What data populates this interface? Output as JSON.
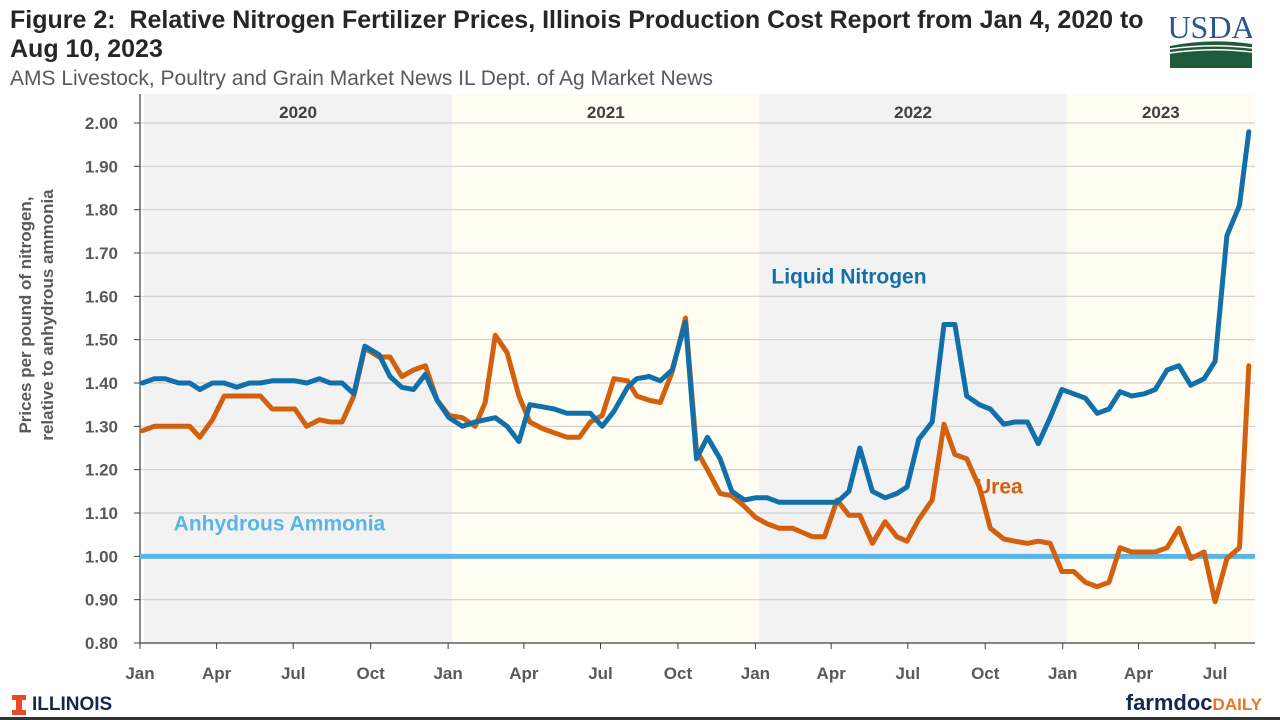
{
  "header": {
    "title": "Figure 2:  Relative Nitrogen Fertilizer Prices, Illinois Production Cost Report from Jan 4, 2020 to Aug 10, 2023",
    "subtitle": "AMS Livestock, Poultry and Grain Market News IL Dept. of Ag Market News",
    "logo_text": "USDA"
  },
  "footer": {
    "left_logo": "ILLINOIS",
    "right_logo_main": "farmdoc",
    "right_logo_accent": "DAILY"
  },
  "colors": {
    "liquid_nitrogen": "#1170aa",
    "urea": "#d2600e",
    "anhydrous_ammonia": "#5ab4e5",
    "band_grey": "#f2f2f2",
    "band_cream": "#fffdf2"
  },
  "chart_data": {
    "type": "line",
    "title": "Figure 2:  Relative Nitrogen Fertilizer Prices, Illinois Production Cost Report from Jan 4, 2020 to Aug 10, 2023",
    "ylabel": "Prices per pound of nitrogen, relative to anhydrous ammonia",
    "xlabel": "",
    "ylim": [
      0.8,
      2.0
    ],
    "yticks": [
      "0.80",
      "0.90",
      "1.00",
      "1.10",
      "1.20",
      "1.30",
      "1.40",
      "1.50",
      "1.60",
      "1.70",
      "1.80",
      "1.90",
      "2.00"
    ],
    "grid": true,
    "year_bands": [
      {
        "label": "2020",
        "start": "2020-01-01",
        "end": "2021-01-01",
        "shade": "grey"
      },
      {
        "label": "2021",
        "start": "2021-01-01",
        "end": "2022-01-01",
        "shade": "cream"
      },
      {
        "label": "2022",
        "start": "2022-01-01",
        "end": "2023-01-01",
        "shade": "grey"
      },
      {
        "label": "2023",
        "start": "2023-01-01",
        "end": "2023-08-20",
        "shade": "cream"
      }
    ],
    "x_ticks": [
      {
        "date": "2020-01-01",
        "label": "Jan"
      },
      {
        "date": "2020-04-01",
        "label": "Apr"
      },
      {
        "date": "2020-07-01",
        "label": "Jul"
      },
      {
        "date": "2020-10-01",
        "label": "Oct"
      },
      {
        "date": "2021-01-01",
        "label": "Jan"
      },
      {
        "date": "2021-04-01",
        "label": "Apr"
      },
      {
        "date": "2021-07-01",
        "label": "Jul"
      },
      {
        "date": "2021-10-01",
        "label": "Oct"
      },
      {
        "date": "2022-01-01",
        "label": "Jan"
      },
      {
        "date": "2022-04-01",
        "label": "Apr"
      },
      {
        "date": "2022-07-01",
        "label": "Jul"
      },
      {
        "date": "2022-10-01",
        "label": "Oct"
      },
      {
        "date": "2023-01-01",
        "label": "Jan"
      },
      {
        "date": "2023-04-01",
        "label": "Apr"
      },
      {
        "date": "2023-07-01",
        "label": "Jul"
      }
    ],
    "x": [
      "2020-01-04",
      "2020-01-18",
      "2020-01-31",
      "2020-02-16",
      "2020-02-29",
      "2020-03-12",
      "2020-03-27",
      "2020-04-10",
      "2020-04-25",
      "2020-05-10",
      "2020-05-23",
      "2020-06-06",
      "2020-06-19",
      "2020-07-03",
      "2020-07-17",
      "2020-08-01",
      "2020-08-14",
      "2020-08-28",
      "2020-09-11",
      "2020-09-24",
      "2020-10-11",
      "2020-10-24",
      "2020-11-07",
      "2020-11-21",
      "2020-12-05",
      "2020-12-19",
      "2021-01-02",
      "2021-01-18",
      "2021-02-02",
      "2021-02-14",
      "2021-02-26",
      "2021-03-12",
      "2021-03-26",
      "2021-04-08",
      "2021-04-23",
      "2021-05-07",
      "2021-05-22",
      "2021-06-06",
      "2021-06-19",
      "2021-07-03",
      "2021-07-17",
      "2021-08-02",
      "2021-08-13",
      "2021-08-28",
      "2021-09-10",
      "2021-09-24",
      "2021-10-10",
      "2021-10-23",
      "2021-11-05",
      "2021-11-20",
      "2021-12-04",
      "2021-12-19",
      "2022-01-01",
      "2022-01-15",
      "2022-01-29",
      "2022-02-14",
      "2022-02-26",
      "2022-03-10",
      "2022-03-24",
      "2022-04-08",
      "2022-04-22",
      "2022-05-05",
      "2022-05-20",
      "2022-06-04",
      "2022-06-18",
      "2022-06-30",
      "2022-07-14",
      "2022-07-30",
      "2022-08-13",
      "2022-08-26",
      "2022-09-09",
      "2022-09-24",
      "2022-10-07",
      "2022-10-23",
      "2022-11-05",
      "2022-11-20",
      "2022-12-03",
      "2022-12-17",
      "2022-12-31",
      "2023-01-14",
      "2023-01-28",
      "2023-02-11",
      "2023-02-25",
      "2023-03-10",
      "2023-03-24",
      "2023-04-08",
      "2023-04-21",
      "2023-05-05",
      "2023-05-19",
      "2023-06-02",
      "2023-06-18",
      "2023-07-01",
      "2023-07-15",
      "2023-07-30",
      "2023-08-10"
    ],
    "series": [
      {
        "name": "Anhydrous Ammonia",
        "color_key": "anhydrous_ammonia",
        "constant": 1.0
      },
      {
        "name": "Urea",
        "color_key": "urea",
        "values": [
          1.29,
          1.3,
          1.3,
          1.3,
          1.3,
          1.275,
          1.315,
          1.37,
          1.37,
          1.37,
          1.37,
          1.34,
          1.34,
          1.34,
          1.3,
          1.315,
          1.31,
          1.31,
          1.37,
          1.48,
          1.46,
          1.46,
          1.415,
          1.43,
          1.44,
          1.36,
          1.325,
          1.32,
          1.3,
          1.355,
          1.51,
          1.47,
          1.37,
          1.31,
          1.295,
          1.285,
          1.275,
          1.275,
          1.31,
          1.325,
          1.41,
          1.405,
          1.37,
          1.36,
          1.355,
          1.425,
          1.55,
          1.245,
          1.2,
          1.145,
          1.14,
          1.115,
          1.09,
          1.075,
          1.065,
          1.065,
          1.055,
          1.045,
          1.045,
          1.13,
          1.095,
          1.095,
          1.03,
          1.08,
          1.045,
          1.035,
          1.085,
          1.13,
          1.305,
          1.235,
          1.225,
          1.16,
          1.065,
          1.04,
          1.035,
          1.03,
          1.035,
          1.03,
          0.965,
          0.965,
          0.94,
          0.93,
          0.94,
          1.02,
          1.01,
          1.01,
          1.01,
          1.02,
          1.065,
          0.995,
          1.01,
          0.895,
          0.995,
          1.02,
          1.44
        ]
      },
      {
        "name": "Liquid Nitrogen",
        "color_key": "liquid_nitrogen",
        "values": [
          1.4,
          1.41,
          1.41,
          1.4,
          1.4,
          1.385,
          1.4,
          1.4,
          1.39,
          1.4,
          1.4,
          1.405,
          1.405,
          1.405,
          1.4,
          1.41,
          1.4,
          1.4,
          1.375,
          1.485,
          1.465,
          1.415,
          1.39,
          1.385,
          1.42,
          1.36,
          1.32,
          1.3,
          1.31,
          1.315,
          1.32,
          1.3,
          1.265,
          1.35,
          1.345,
          1.34,
          1.33,
          1.33,
          1.33,
          1.3,
          1.335,
          1.39,
          1.41,
          1.415,
          1.405,
          1.43,
          1.54,
          1.225,
          1.275,
          1.225,
          1.15,
          1.13,
          1.135,
          1.135,
          1.125,
          1.125,
          1.125,
          1.125,
          1.125,
          1.125,
          1.15,
          1.25,
          1.15,
          1.135,
          1.145,
          1.16,
          1.27,
          1.31,
          1.535,
          1.535,
          1.37,
          1.35,
          1.34,
          1.305,
          1.31,
          1.31,
          1.26,
          1.32,
          1.385,
          1.375,
          1.365,
          1.33,
          1.34,
          1.38,
          1.37,
          1.375,
          1.385,
          1.43,
          1.44,
          1.395,
          1.41,
          1.45,
          1.74,
          1.81,
          1.98
        ]
      }
    ],
    "annotations": [
      {
        "text": "Liquid Nitrogen",
        "series": "Liquid Nitrogen",
        "date": "2022-01-20",
        "value": 1.63
      },
      {
        "text": "Urea",
        "series": "Urea",
        "date": "2022-09-20",
        "value": 1.145
      },
      {
        "text": "Anhydrous Ammonia",
        "series": "Anhydrous Ammonia",
        "date": "2020-02-10",
        "value": 1.06
      }
    ]
  }
}
